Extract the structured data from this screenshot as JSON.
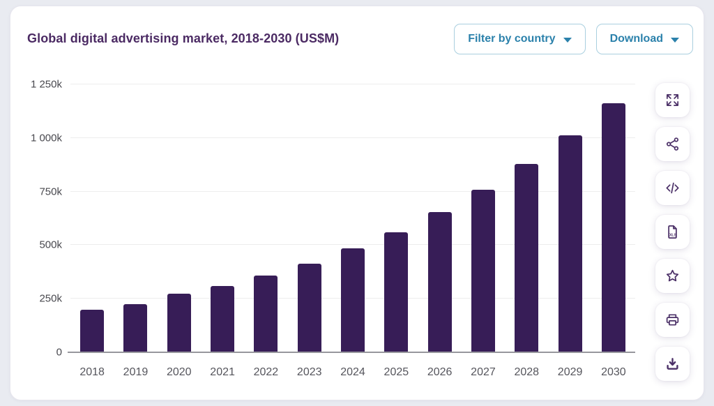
{
  "header": {
    "title": "Global digital advertising market, 2018-2030 (US$M)",
    "filter_button_label": "Filter by country",
    "download_button_label": "Download"
  },
  "toolbar": {
    "xls_badge": "XLS",
    "buttons": [
      "expand",
      "share",
      "embed-code",
      "download-xls",
      "favorite",
      "print",
      "download-image"
    ]
  },
  "colors": {
    "bar": "#371d57",
    "title_purple": "#4b2a63",
    "accent_blue": "#2b81ab",
    "icon_purple": "#4b3067",
    "page_background": "#e9ebf1"
  },
  "chart_data": {
    "type": "bar",
    "title": "Global digital advertising market, 2018-2030 (US$M)",
    "unit": "US$M",
    "categories": [
      "2018",
      "2019",
      "2020",
      "2021",
      "2022",
      "2023",
      "2024",
      "2025",
      "2026",
      "2027",
      "2028",
      "2029",
      "2030"
    ],
    "values": [
      200000,
      224000,
      272000,
      310000,
      359000,
      415000,
      484000,
      561000,
      654000,
      758000,
      878000,
      1013000,
      1162000
    ],
    "xlabel": "",
    "ylabel": "",
    "ylim": [
      0,
      1250000
    ],
    "ytick_interval": 250000,
    "ytick_labels": [
      "0",
      "250k",
      "500k",
      "750k",
      "1 000k",
      "1 250k"
    ],
    "grid": true,
    "legend": false,
    "bar_color": "#371d57"
  }
}
